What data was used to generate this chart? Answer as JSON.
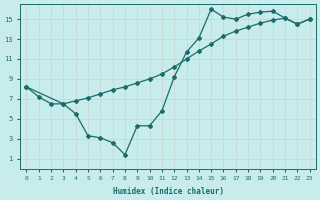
{
  "title": "",
  "xlabel": "Humidex (Indice chaleur)",
  "ylabel": "",
  "bg_color": "#c8ecec",
  "line_color": "#1a6b6b",
  "grid_color": "#d0e8e8",
  "xlim": [
    -0.5,
    23.5
  ],
  "ylim": [
    0,
    16.5
  ],
  "xticks": [
    0,
    1,
    2,
    3,
    4,
    5,
    6,
    7,
    8,
    9,
    10,
    11,
    12,
    13,
    14,
    15,
    16,
    17,
    18,
    19,
    20,
    21,
    22,
    23
  ],
  "yticks": [
    1,
    3,
    5,
    7,
    9,
    11,
    13,
    15
  ],
  "line_zigzag_x": [
    0,
    1,
    2,
    3,
    4,
    5,
    6,
    7,
    8,
    9,
    10,
    11,
    12,
    13,
    14,
    15,
    16,
    17,
    18,
    19,
    20,
    21,
    22,
    23
  ],
  "line_zigzag_y": [
    8.2,
    7.2,
    6.5,
    6.5,
    5.5,
    3.3,
    3.1,
    2.6,
    1.4,
    4.3,
    4.3,
    5.8,
    9.2,
    11.7,
    13.1,
    16.0,
    15.2,
    15.0,
    15.5,
    15.7,
    15.8,
    15.1,
    14.5,
    15.0
  ],
  "line_straight_x": [
    0,
    3,
    4,
    5,
    6,
    7,
    8,
    9,
    10,
    11,
    12,
    13,
    14,
    15,
    16,
    17,
    18,
    19,
    20,
    21,
    22,
    23
  ],
  "line_straight_y": [
    8.2,
    6.5,
    6.8,
    7.1,
    7.5,
    7.9,
    8.2,
    8.6,
    9.0,
    9.5,
    10.2,
    11.0,
    11.8,
    12.5,
    13.3,
    13.8,
    14.2,
    14.6,
    14.9,
    15.1,
    14.5,
    15.0
  ]
}
